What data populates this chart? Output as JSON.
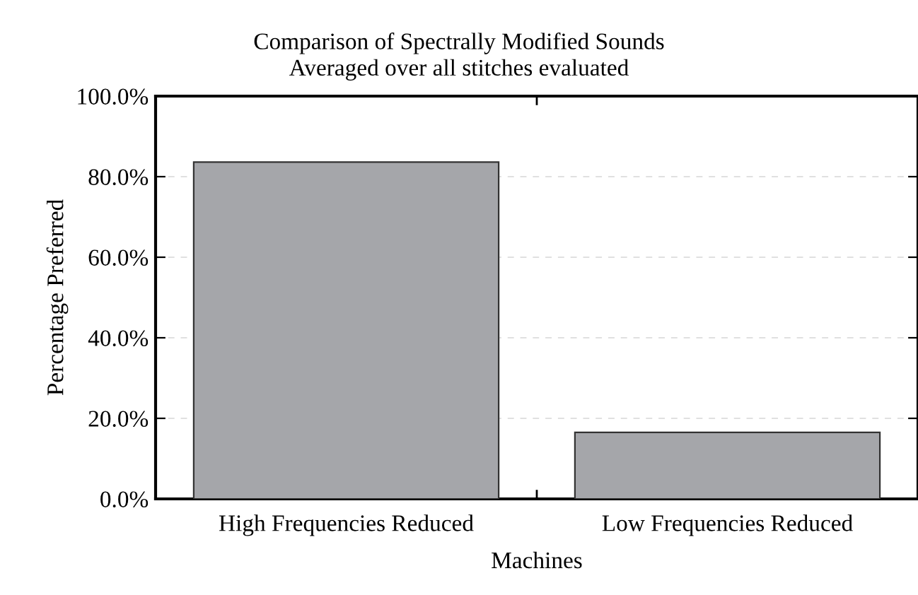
{
  "chart_data": {
    "type": "bar",
    "title": "Comparison of Spectrally Modified Sounds\nAveraged over all stitches evaluated",
    "xlabel": "Machines",
    "ylabel": "Percentage Preferred",
    "categories": [
      "High Frequencies Reduced",
      "Low Frequencies Reduced"
    ],
    "values": [
      83.6,
      16.5
    ],
    "color": "#a5a6aa",
    "ylim": [
      0,
      100
    ],
    "yticks": [
      {
        "value": 0,
        "label": "0.0%"
      },
      {
        "value": 20,
        "label": "20.0%"
      },
      {
        "value": 40,
        "label": "40.0%"
      },
      {
        "value": 60,
        "label": "60.0%"
      },
      {
        "value": 80,
        "label": "80.0%"
      },
      {
        "value": 100,
        "label": "100.0%"
      }
    ],
    "grid": "y",
    "legend": false
  }
}
